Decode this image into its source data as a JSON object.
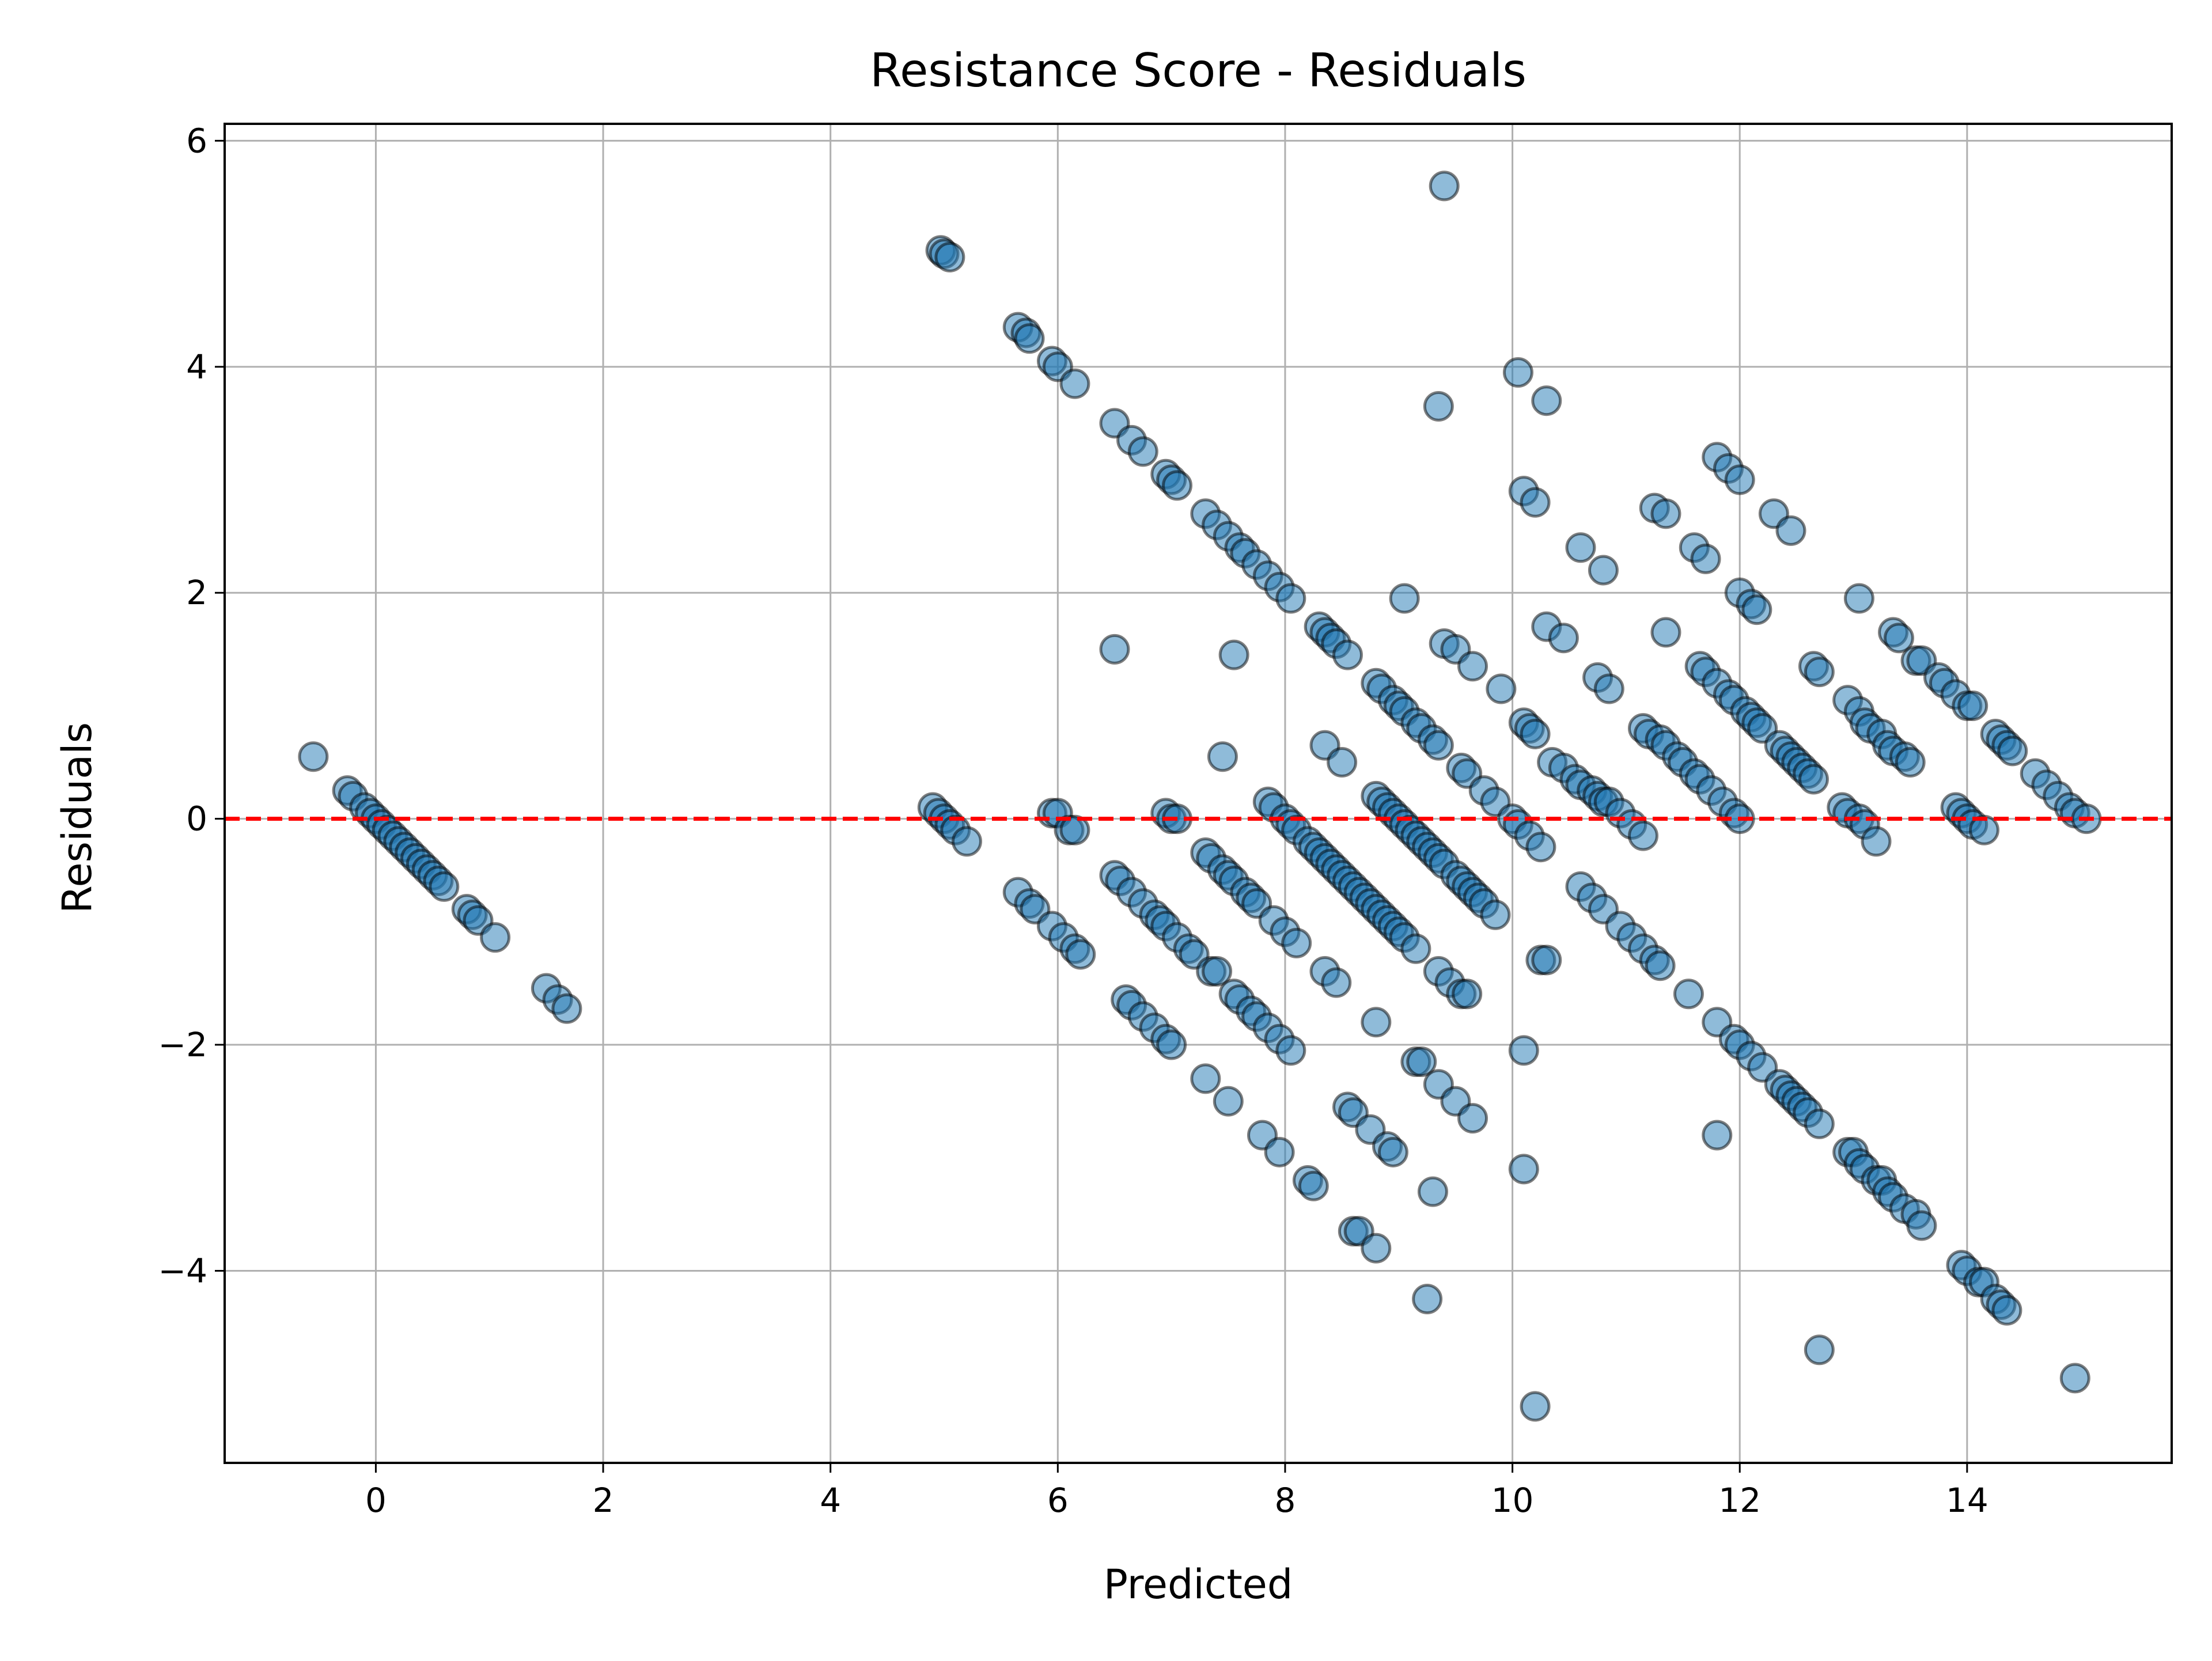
{
  "chart_data": {
    "type": "scatter",
    "title": "Resistance Score - Residuals",
    "xlabel": "Predicted",
    "ylabel": "Residuals",
    "xlim": [
      -1.33,
      15.8
    ],
    "ylim": [
      -5.7,
      6.15
    ],
    "x_ticks": [
      0,
      2,
      4,
      6,
      8,
      10,
      12,
      14
    ],
    "y_ticks": [
      -4,
      -2,
      0,
      2,
      4,
      6
    ],
    "x_tick_labels": [
      "0",
      "2",
      "4",
      "6",
      "8",
      "10",
      "12",
      "14"
    ],
    "y_tick_labels": [
      "−4",
      "−2",
      "0",
      "2",
      "4",
      "6"
    ],
    "grid": true,
    "reference_line": {
      "y": 0,
      "style": "dashed",
      "color": "#ff0000"
    },
    "marker": {
      "fill": "#1f77b4",
      "edge": "#000000",
      "alpha": 0.5
    },
    "points": [
      [
        -0.55,
        0.55
      ],
      [
        -0.25,
        0.25
      ],
      [
        -0.2,
        0.2
      ],
      [
        -0.1,
        0.1
      ],
      [
        -0.05,
        0.05
      ],
      [
        0.0,
        0.0
      ],
      [
        0.05,
        -0.05
      ],
      [
        0.1,
        -0.1
      ],
      [
        0.15,
        -0.15
      ],
      [
        0.2,
        -0.2
      ],
      [
        0.25,
        -0.25
      ],
      [
        0.3,
        -0.3
      ],
      [
        0.35,
        -0.35
      ],
      [
        0.4,
        -0.4
      ],
      [
        0.45,
        -0.45
      ],
      [
        0.5,
        -0.5
      ],
      [
        0.55,
        -0.55
      ],
      [
        0.6,
        -0.6
      ],
      [
        0.8,
        -0.8
      ],
      [
        0.85,
        -0.85
      ],
      [
        0.9,
        -0.9
      ],
      [
        1.05,
        -1.05
      ],
      [
        1.5,
        -1.5
      ],
      [
        1.6,
        -1.6
      ],
      [
        1.68,
        -1.68
      ],
      [
        4.9,
        0.1
      ],
      [
        4.95,
        0.05
      ],
      [
        5.0,
        0.0
      ],
      [
        5.05,
        -0.05
      ],
      [
        5.1,
        -0.1
      ],
      [
        5.2,
        -0.2
      ],
      [
        4.97,
        5.03
      ],
      [
        5.0,
        5.0
      ],
      [
        5.05,
        4.97
      ],
      [
        5.65,
        4.35
      ],
      [
        5.72,
        4.3
      ],
      [
        5.75,
        4.25
      ],
      [
        5.95,
        4.05
      ],
      [
        6.0,
        4.0
      ],
      [
        6.15,
        3.85
      ],
      [
        6.5,
        3.5
      ],
      [
        6.65,
        3.35
      ],
      [
        6.75,
        3.25
      ],
      [
        6.95,
        3.05
      ],
      [
        7.0,
        3.0
      ],
      [
        7.05,
        2.95
      ],
      [
        7.3,
        2.7
      ],
      [
        7.4,
        2.6
      ],
      [
        7.5,
        2.5
      ],
      [
        7.6,
        2.4
      ],
      [
        7.65,
        2.35
      ],
      [
        7.75,
        2.25
      ],
      [
        7.85,
        2.15
      ],
      [
        7.95,
        2.05
      ],
      [
        8.05,
        1.95
      ],
      [
        8.3,
        1.7
      ],
      [
        8.35,
        1.65
      ],
      [
        8.4,
        1.6
      ],
      [
        8.45,
        1.55
      ],
      [
        8.55,
        1.45
      ],
      [
        8.8,
        1.2
      ],
      [
        8.85,
        1.15
      ],
      [
        8.95,
        1.05
      ],
      [
        9.0,
        1.0
      ],
      [
        9.05,
        0.95
      ],
      [
        9.15,
        0.85
      ],
      [
        9.2,
        0.8
      ],
      [
        9.3,
        0.7
      ],
      [
        9.35,
        0.65
      ],
      [
        9.55,
        0.45
      ],
      [
        9.6,
        0.4
      ],
      [
        9.75,
        0.25
      ],
      [
        9.85,
        0.15
      ],
      [
        10.0,
        0.0
      ],
      [
        10.05,
        -0.05
      ],
      [
        10.15,
        -0.15
      ],
      [
        10.25,
        -0.25
      ],
      [
        10.35,
        0.5
      ],
      [
        10.45,
        0.45
      ],
      [
        10.55,
        0.35
      ],
      [
        10.6,
        0.3
      ],
      [
        10.7,
        0.25
      ],
      [
        10.75,
        0.2
      ],
      [
        10.8,
        0.15
      ],
      [
        10.85,
        0.15
      ],
      [
        10.95,
        0.05
      ],
      [
        11.05,
        -0.05
      ],
      [
        11.15,
        -0.15
      ],
      [
        11.15,
        0.8
      ],
      [
        11.2,
        0.75
      ],
      [
        11.3,
        0.7
      ],
      [
        11.35,
        0.65
      ],
      [
        11.45,
        0.55
      ],
      [
        11.5,
        0.5
      ],
      [
        11.6,
        0.4
      ],
      [
        11.65,
        0.35
      ],
      [
        11.75,
        0.25
      ],
      [
        11.85,
        0.15
      ],
      [
        11.95,
        0.05
      ],
      [
        12.0,
        0.0
      ],
      [
        11.65,
        1.35
      ],
      [
        11.7,
        1.3
      ],
      [
        11.8,
        1.2
      ],
      [
        11.9,
        1.1
      ],
      [
        11.95,
        1.05
      ],
      [
        12.05,
        0.95
      ],
      [
        12.1,
        0.9
      ],
      [
        12.15,
        0.85
      ],
      [
        12.2,
        0.8
      ],
      [
        12.35,
        0.65
      ],
      [
        12.4,
        0.6
      ],
      [
        12.45,
        0.55
      ],
      [
        12.5,
        0.5
      ],
      [
        12.55,
        0.45
      ],
      [
        12.6,
        0.4
      ],
      [
        12.65,
        0.35
      ],
      [
        12.65,
        1.35
      ],
      [
        12.7,
        1.3
      ],
      [
        12.95,
        1.05
      ],
      [
        13.05,
        0.95
      ],
      [
        13.1,
        0.85
      ],
      [
        13.15,
        0.8
      ],
      [
        13.25,
        0.75
      ],
      [
        13.3,
        0.65
      ],
      [
        13.35,
        0.6
      ],
      [
        13.45,
        0.55
      ],
      [
        13.5,
        0.5
      ],
      [
        13.35,
        1.65
      ],
      [
        13.4,
        1.6
      ],
      [
        13.55,
        1.4
      ],
      [
        13.6,
        1.4
      ],
      [
        13.75,
        1.25
      ],
      [
        13.8,
        1.2
      ],
      [
        13.9,
        1.1
      ],
      [
        14.0,
        1.0
      ],
      [
        14.05,
        1.0
      ],
      [
        14.25,
        0.75
      ],
      [
        14.3,
        0.7
      ],
      [
        14.35,
        0.65
      ],
      [
        14.4,
        0.6
      ],
      [
        14.6,
        0.4
      ],
      [
        14.7,
        0.3
      ],
      [
        14.8,
        0.2
      ],
      [
        14.9,
        0.1
      ],
      [
        14.95,
        0.05
      ],
      [
        15.05,
        0.0
      ],
      [
        13.9,
        0.1
      ],
      [
        13.95,
        0.05
      ],
      [
        14.0,
        0.0
      ],
      [
        14.05,
        -0.05
      ],
      [
        14.15,
        -0.1
      ],
      [
        12.9,
        0.1
      ],
      [
        12.95,
        0.05
      ],
      [
        13.05,
        0.0
      ],
      [
        13.1,
        -0.05
      ],
      [
        13.2,
        -0.2
      ],
      [
        5.95,
        0.05
      ],
      [
        6.0,
        0.05
      ],
      [
        6.1,
        -0.1
      ],
      [
        6.15,
        -0.1
      ],
      [
        6.95,
        0.05
      ],
      [
        7.0,
        0.0
      ],
      [
        7.05,
        0.0
      ],
      [
        7.3,
        -0.3
      ],
      [
        7.35,
        -0.35
      ],
      [
        7.45,
        -0.45
      ],
      [
        7.5,
        -0.5
      ],
      [
        7.55,
        -0.55
      ],
      [
        7.65,
        -0.65
      ],
      [
        7.7,
        -0.7
      ],
      [
        7.75,
        -0.75
      ],
      [
        7.85,
        0.15
      ],
      [
        7.9,
        0.1
      ],
      [
        8.0,
        0.0
      ],
      [
        8.05,
        -0.05
      ],
      [
        8.1,
        -0.1
      ],
      [
        8.2,
        -0.2
      ],
      [
        8.25,
        -0.25
      ],
      [
        8.3,
        -0.3
      ],
      [
        8.35,
        -0.35
      ],
      [
        8.4,
        -0.4
      ],
      [
        8.45,
        -0.45
      ],
      [
        8.5,
        -0.5
      ],
      [
        8.55,
        -0.55
      ],
      [
        8.6,
        -0.6
      ],
      [
        8.65,
        -0.65
      ],
      [
        8.7,
        -0.7
      ],
      [
        8.75,
        -0.75
      ],
      [
        8.8,
        -0.8
      ],
      [
        8.85,
        -0.85
      ],
      [
        8.9,
        -0.9
      ],
      [
        8.95,
        -0.95
      ],
      [
        9.0,
        -1.0
      ],
      [
        9.05,
        -1.05
      ],
      [
        9.15,
        -1.15
      ],
      [
        8.8,
        0.2
      ],
      [
        8.85,
        0.15
      ],
      [
        8.9,
        0.1
      ],
      [
        8.95,
        0.05
      ],
      [
        9.0,
        0.0
      ],
      [
        9.05,
        -0.05
      ],
      [
        9.1,
        -0.1
      ],
      [
        9.15,
        -0.15
      ],
      [
        9.2,
        -0.2
      ],
      [
        9.25,
        -0.25
      ],
      [
        9.3,
        -0.3
      ],
      [
        9.35,
        -0.35
      ],
      [
        9.4,
        -0.4
      ],
      [
        9.5,
        -0.5
      ],
      [
        9.55,
        -0.55
      ],
      [
        9.6,
        -0.6
      ],
      [
        9.65,
        -0.65
      ],
      [
        9.7,
        -0.7
      ],
      [
        9.75,
        -0.75
      ],
      [
        9.85,
        -0.85
      ],
      [
        9.35,
        -1.35
      ],
      [
        9.45,
        -1.45
      ],
      [
        9.55,
        -1.55
      ],
      [
        9.6,
        -1.55
      ],
      [
        8.35,
        0.65
      ],
      [
        8.5,
        0.5
      ],
      [
        9.05,
        1.95
      ],
      [
        9.4,
        1.55
      ],
      [
        9.5,
        1.5
      ],
      [
        9.65,
        1.35
      ],
      [
        9.9,
        1.15
      ],
      [
        10.1,
        0.85
      ],
      [
        10.15,
        0.8
      ],
      [
        10.2,
        0.75
      ],
      [
        10.05,
        3.95
      ],
      [
        10.3,
        3.7
      ],
      [
        10.1,
        2.9
      ],
      [
        10.2,
        2.8
      ],
      [
        10.3,
        1.7
      ],
      [
        10.45,
        1.6
      ],
      [
        10.6,
        2.4
      ],
      [
        10.8,
        2.2
      ],
      [
        10.75,
        1.25
      ],
      [
        10.85,
        1.15
      ],
      [
        11.25,
        2.75
      ],
      [
        11.35,
        2.7
      ],
      [
        11.35,
        1.65
      ],
      [
        11.6,
        2.4
      ],
      [
        11.7,
        2.3
      ],
      [
        11.8,
        3.2
      ],
      [
        11.9,
        3.1
      ],
      [
        12.0,
        3.0
      ],
      [
        12.0,
        2.0
      ],
      [
        12.1,
        1.9
      ],
      [
        12.15,
        1.85
      ],
      [
        12.3,
        2.7
      ],
      [
        12.45,
        2.55
      ],
      [
        13.05,
        1.95
      ],
      [
        9.35,
        3.65
      ],
      [
        9.4,
        5.6
      ],
      [
        6.5,
        1.5
      ],
      [
        7.55,
        1.45
      ],
      [
        7.45,
        0.55
      ],
      [
        5.65,
        -0.65
      ],
      [
        5.75,
        -0.75
      ],
      [
        5.8,
        -0.8
      ],
      [
        5.95,
        -0.95
      ],
      [
        6.05,
        -1.05
      ],
      [
        6.15,
        -1.15
      ],
      [
        6.2,
        -1.2
      ],
      [
        6.5,
        -0.5
      ],
      [
        6.55,
        -0.55
      ],
      [
        6.65,
        -0.65
      ],
      [
        6.75,
        -0.75
      ],
      [
        6.85,
        -0.85
      ],
      [
        6.9,
        -0.9
      ],
      [
        6.95,
        -0.95
      ],
      [
        7.05,
        -1.05
      ],
      [
        7.15,
        -1.15
      ],
      [
        7.2,
        -1.2
      ],
      [
        7.35,
        -1.35
      ],
      [
        7.4,
        -1.35
      ],
      [
        6.6,
        -1.6
      ],
      [
        6.65,
        -1.65
      ],
      [
        6.75,
        -1.75
      ],
      [
        6.85,
        -1.85
      ],
      [
        6.95,
        -1.95
      ],
      [
        7.0,
        -2.0
      ],
      [
        7.55,
        -1.55
      ],
      [
        7.6,
        -1.6
      ],
      [
        7.7,
        -1.7
      ],
      [
        7.75,
        -1.75
      ],
      [
        7.85,
        -1.85
      ],
      [
        7.95,
        -1.95
      ],
      [
        8.05,
        -2.05
      ],
      [
        7.3,
        -2.3
      ],
      [
        7.5,
        -2.5
      ],
      [
        7.8,
        -2.8
      ],
      [
        7.95,
        -2.95
      ],
      [
        8.2,
        -3.2
      ],
      [
        8.25,
        -3.25
      ],
      [
        7.9,
        -0.9
      ],
      [
        8.0,
        -1.0
      ],
      [
        8.1,
        -1.1
      ],
      [
        8.35,
        -1.35
      ],
      [
        8.45,
        -1.45
      ],
      [
        8.55,
        -2.55
      ],
      [
        8.6,
        -2.6
      ],
      [
        8.75,
        -2.75
      ],
      [
        8.9,
        -2.9
      ],
      [
        8.95,
        -2.95
      ],
      [
        8.8,
        -1.8
      ],
      [
        8.6,
        -3.65
      ],
      [
        8.65,
        -3.65
      ],
      [
        8.8,
        -3.8
      ],
      [
        9.15,
        -2.15
      ],
      [
        9.2,
        -2.15
      ],
      [
        9.35,
        -2.35
      ],
      [
        9.5,
        -2.5
      ],
      [
        9.65,
        -2.65
      ],
      [
        9.3,
        -3.3
      ],
      [
        9.25,
        -4.25
      ],
      [
        10.1,
        -2.05
      ],
      [
        10.1,
        -3.1
      ],
      [
        10.25,
        -1.25
      ],
      [
        10.3,
        -1.25
      ],
      [
        10.6,
        -0.6
      ],
      [
        10.7,
        -0.7
      ],
      [
        10.8,
        -0.8
      ],
      [
        10.95,
        -0.95
      ],
      [
        11.05,
        -1.05
      ],
      [
        11.15,
        -1.15
      ],
      [
        11.25,
        -1.25
      ],
      [
        11.3,
        -1.3
      ],
      [
        11.55,
        -1.55
      ],
      [
        11.8,
        -1.8
      ],
      [
        11.8,
        -2.8
      ],
      [
        11.95,
        -1.95
      ],
      [
        12.0,
        -2.0
      ],
      [
        12.1,
        -2.1
      ],
      [
        12.2,
        -2.2
      ],
      [
        12.35,
        -2.35
      ],
      [
        12.4,
        -2.4
      ],
      [
        12.45,
        -2.45
      ],
      [
        12.5,
        -2.5
      ],
      [
        12.55,
        -2.55
      ],
      [
        12.6,
        -2.6
      ],
      [
        12.7,
        -2.7
      ],
      [
        12.95,
        -2.95
      ],
      [
        13.0,
        -2.95
      ],
      [
        13.05,
        -3.05
      ],
      [
        13.1,
        -3.1
      ],
      [
        13.2,
        -3.2
      ],
      [
        13.25,
        -3.2
      ],
      [
        13.3,
        -3.3
      ],
      [
        13.35,
        -3.35
      ],
      [
        13.45,
        -3.45
      ],
      [
        13.55,
        -3.5
      ],
      [
        13.6,
        -3.6
      ],
      [
        13.95,
        -3.95
      ],
      [
        14.0,
        -4.0
      ],
      [
        14.1,
        -4.1
      ],
      [
        14.15,
        -4.1
      ],
      [
        14.25,
        -4.25
      ],
      [
        14.3,
        -4.3
      ],
      [
        14.35,
        -4.35
      ],
      [
        12.7,
        -4.7
      ],
      [
        10.2,
        -5.2
      ],
      [
        14.95,
        -4.95
      ]
    ]
  }
}
